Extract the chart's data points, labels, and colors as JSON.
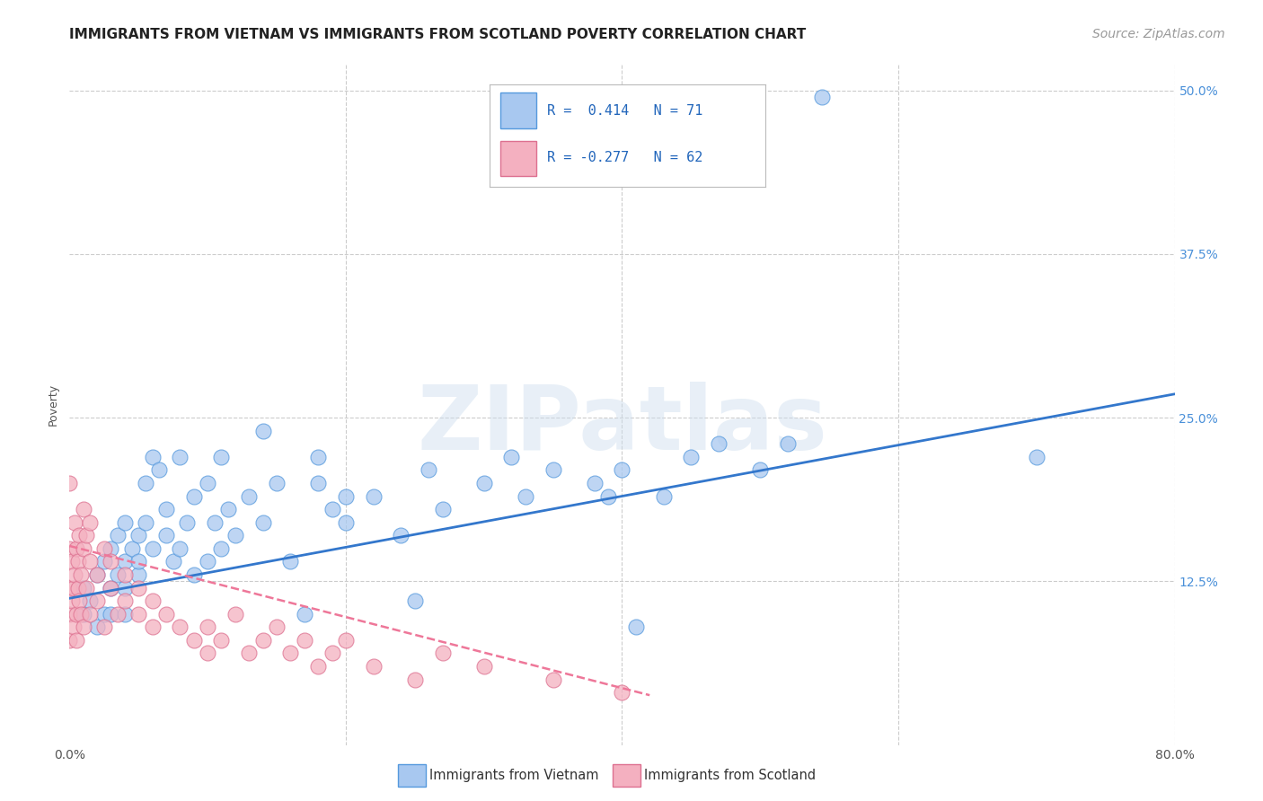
{
  "title": "IMMIGRANTS FROM VIETNAM VS IMMIGRANTS FROM SCOTLAND POVERTY CORRELATION CHART",
  "source": "Source: ZipAtlas.com",
  "ylabel": "Poverty",
  "xlim": [
    0.0,
    0.8
  ],
  "ylim": [
    0.0,
    0.52
  ],
  "xticks": [
    0.0,
    0.2,
    0.4,
    0.6,
    0.8
  ],
  "xticklabels": [
    "0.0%",
    "",
    "",
    "",
    "80.0%"
  ],
  "yticks": [
    0.0,
    0.125,
    0.25,
    0.375,
    0.5
  ],
  "yticklabels": [
    "",
    "12.5%",
    "25.0%",
    "37.5%",
    "50.0%"
  ],
  "legend_R_vietnam": " 0.414",
  "legend_N_vietnam": "71",
  "legend_R_scotland": "-0.277",
  "legend_N_scotland": "62",
  "vietnam_fill_color": "#A8C8F0",
  "vietnam_edge_color": "#5599DD",
  "scotland_fill_color": "#F4B0C0",
  "scotland_edge_color": "#DD7090",
  "vietnam_line_color": "#3377CC",
  "scotland_line_color": "#EE7799",
  "watermark_text": "ZIPatlas",
  "background_color": "#FFFFFF",
  "grid_color": "#CCCCCC",
  "title_fontsize": 11,
  "axis_label_fontsize": 9,
  "tick_fontsize": 10,
  "legend_fontsize": 11,
  "source_fontsize": 10,
  "vietnam_scatter_x": [
    0.01,
    0.01,
    0.015,
    0.02,
    0.02,
    0.025,
    0.025,
    0.03,
    0.03,
    0.03,
    0.035,
    0.035,
    0.04,
    0.04,
    0.04,
    0.04,
    0.045,
    0.05,
    0.05,
    0.05,
    0.055,
    0.055,
    0.06,
    0.06,
    0.065,
    0.07,
    0.07,
    0.075,
    0.08,
    0.08,
    0.085,
    0.09,
    0.09,
    0.1,
    0.1,
    0.105,
    0.11,
    0.11,
    0.115,
    0.12,
    0.13,
    0.14,
    0.14,
    0.15,
    0.16,
    0.17,
    0.18,
    0.18,
    0.19,
    0.2,
    0.2,
    0.22,
    0.24,
    0.25,
    0.26,
    0.27,
    0.3,
    0.32,
    0.33,
    0.35,
    0.38,
    0.39,
    0.4,
    0.41,
    0.43,
    0.45,
    0.47,
    0.5,
    0.52,
    0.7,
    0.545
  ],
  "vietnam_scatter_y": [
    0.1,
    0.12,
    0.11,
    0.13,
    0.09,
    0.14,
    0.1,
    0.12,
    0.15,
    0.1,
    0.13,
    0.16,
    0.14,
    0.12,
    0.1,
    0.17,
    0.15,
    0.13,
    0.16,
    0.14,
    0.17,
    0.2,
    0.22,
    0.15,
    0.21,
    0.18,
    0.16,
    0.14,
    0.22,
    0.15,
    0.17,
    0.19,
    0.13,
    0.2,
    0.14,
    0.17,
    0.15,
    0.22,
    0.18,
    0.16,
    0.19,
    0.24,
    0.17,
    0.2,
    0.14,
    0.1,
    0.2,
    0.22,
    0.18,
    0.19,
    0.17,
    0.19,
    0.16,
    0.11,
    0.21,
    0.18,
    0.2,
    0.22,
    0.19,
    0.21,
    0.2,
    0.19,
    0.21,
    0.09,
    0.19,
    0.22,
    0.23,
    0.21,
    0.23,
    0.22,
    0.495
  ],
  "scotland_scatter_x": [
    0.0,
    0.0,
    0.0,
    0.0,
    0.0,
    0.002,
    0.002,
    0.003,
    0.003,
    0.004,
    0.004,
    0.005,
    0.005,
    0.005,
    0.006,
    0.006,
    0.007,
    0.007,
    0.008,
    0.008,
    0.01,
    0.01,
    0.01,
    0.012,
    0.012,
    0.015,
    0.015,
    0.015,
    0.02,
    0.02,
    0.025,
    0.025,
    0.03,
    0.03,
    0.035,
    0.04,
    0.04,
    0.05,
    0.05,
    0.06,
    0.06,
    0.07,
    0.08,
    0.09,
    0.1,
    0.1,
    0.11,
    0.12,
    0.13,
    0.14,
    0.15,
    0.16,
    0.17,
    0.18,
    0.19,
    0.2,
    0.22,
    0.25,
    0.27,
    0.3,
    0.35,
    0.4
  ],
  "scotland_scatter_y": [
    0.1,
    0.12,
    0.08,
    0.15,
    0.2,
    0.11,
    0.14,
    0.09,
    0.12,
    0.13,
    0.17,
    0.1,
    0.15,
    0.08,
    0.12,
    0.14,
    0.11,
    0.16,
    0.1,
    0.13,
    0.15,
    0.18,
    0.09,
    0.12,
    0.16,
    0.14,
    0.1,
    0.17,
    0.13,
    0.11,
    0.15,
    0.09,
    0.12,
    0.14,
    0.1,
    0.13,
    0.11,
    0.1,
    0.12,
    0.11,
    0.09,
    0.1,
    0.09,
    0.08,
    0.09,
    0.07,
    0.08,
    0.1,
    0.07,
    0.08,
    0.09,
    0.07,
    0.08,
    0.06,
    0.07,
    0.08,
    0.06,
    0.05,
    0.07,
    0.06,
    0.05,
    0.04
  ],
  "vietnam_trend_x": [
    0.0,
    0.8
  ],
  "vietnam_trend_y": [
    0.112,
    0.268
  ],
  "scotland_trend_x": [
    0.0,
    0.42
  ],
  "scotland_trend_y": [
    0.152,
    0.038
  ]
}
